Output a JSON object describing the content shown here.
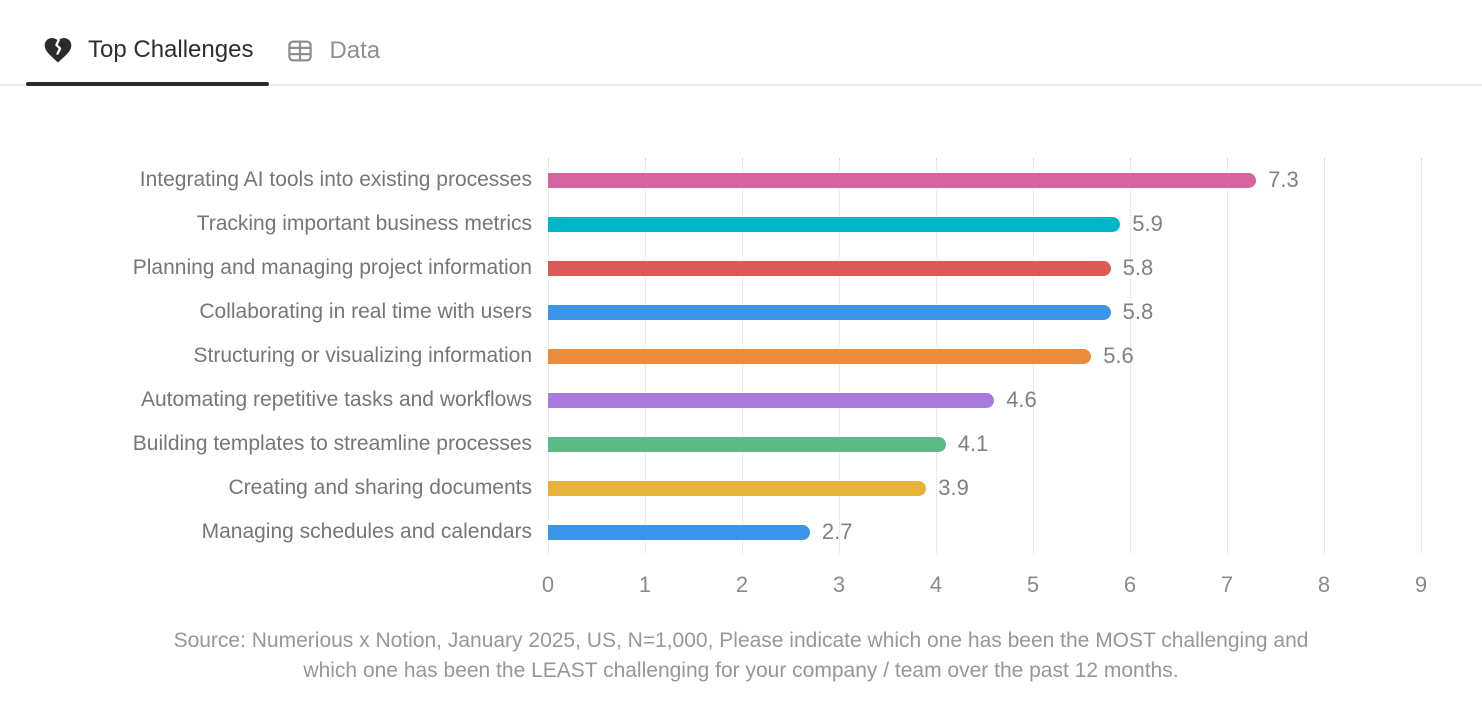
{
  "tabs": [
    {
      "label": "Top Challenges",
      "icon": "broken-heart-icon",
      "active": true
    },
    {
      "label": "Data",
      "icon": "table-icon",
      "active": false
    }
  ],
  "chart_data": {
    "type": "bar",
    "orientation": "horizontal",
    "categories": [
      "Integrating AI tools into existing processes",
      "Tracking important business metrics",
      "Planning and managing project information",
      "Collaborating in real time with users",
      "Structuring or visualizing information",
      "Automating repetitive tasks and workflows",
      "Building templates to streamline processes",
      "Creating and sharing documents",
      "Managing schedules and calendars"
    ],
    "values": [
      7.3,
      5.9,
      5.8,
      5.8,
      5.6,
      4.6,
      4.1,
      3.9,
      2.7
    ],
    "value_labels": [
      "7.3",
      "5.9",
      "5.8",
      "5.8",
      "5.6",
      "4.6",
      "4.1",
      "3.9",
      "2.7"
    ],
    "bar_colors": [
      "#d5659e",
      "#00b5c9",
      "#d95b56",
      "#3a95e8",
      "#eb8c3d",
      "#a97ade",
      "#5bbb86",
      "#e6b23a",
      "#3a95e8"
    ],
    "xlim": [
      0,
      9
    ],
    "x_ticks": [
      0,
      1,
      2,
      3,
      4,
      5,
      6,
      7,
      8,
      9
    ],
    "grid": "dotted-vertical",
    "legend": "none",
    "title": ""
  },
  "source": {
    "line1": "Source: Numerious x Notion, January 2025, US, N=1,000, Please indicate which one has been the MOST challenging and",
    "line2": "which one has been the LEAST challenging for your company /  team over the past 12 months."
  },
  "colors": {
    "active_tab_text": "#2e2e2c",
    "inactive_tab_text": "#8f8f8d",
    "active_underline": "#2b2b29",
    "tab_divider": "#ededeb",
    "gridline": "#d6d6d6",
    "category_label": "#767674",
    "value_label": "#81817f",
    "tick_label": "#8b8b89",
    "source_text": "#979795"
  }
}
